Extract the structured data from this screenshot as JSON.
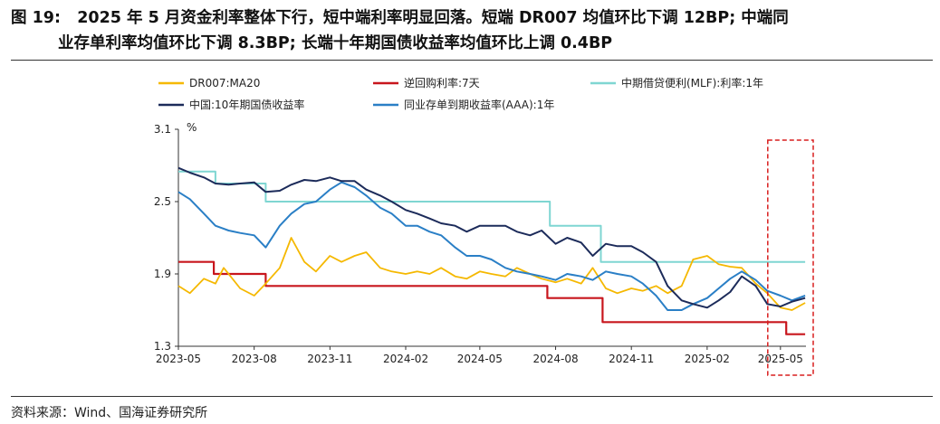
{
  "figure": {
    "label": "图 19:",
    "title_line1": "2025 年 5 月资金利率整体下行，短中端利率明显回落。短端 DR007 均值环比下调 12BP;  中端同",
    "title_line2": "业存单利率均值环比下调 8.3BP;  长端十年期国债收益率均值环比上调 0.4BP",
    "source": "资料来源：Wind、国海证券研究所"
  },
  "chart_data": {
    "type": "line",
    "title": "",
    "ylabel": "%",
    "xlabel": "",
    "ylim": [
      1.3,
      3.1
    ],
    "yticks": [
      1.3,
      1.9,
      2.5,
      3.1
    ],
    "ytick_labels": [
      "1.3",
      "1.9",
      "2.5",
      "3.1"
    ],
    "xrange": [
      "2023-05",
      "2025-06"
    ],
    "xtick_labels": [
      "2023-05",
      "2023-08",
      "2023-11",
      "2024-02",
      "2024-05",
      "2024-08",
      "2024-11",
      "2025-02",
      "2025-05"
    ],
    "grid": false,
    "legend": "top",
    "highlight": {
      "from": "2025-04-20",
      "to": "2025-06-01",
      "style": "dashed-red-box"
    },
    "colors": {
      "dr007": "#f5b800",
      "repo": "#c8161d",
      "mlf": "#7fd6d2",
      "cgb10y": "#1c2b5a",
      "ncd": "#2a7fc6"
    },
    "series": [
      {
        "key": "dr007",
        "name": "DR007:MA20",
        "points": [
          [
            "2023-05-01",
            1.8
          ],
          [
            "2023-05-15",
            1.74
          ],
          [
            "2023-06-01",
            1.86
          ],
          [
            "2023-06-15",
            1.82
          ],
          [
            "2023-06-25",
            1.95
          ],
          [
            "2023-07-01",
            1.9
          ],
          [
            "2023-07-15",
            1.78
          ],
          [
            "2023-08-01",
            1.72
          ],
          [
            "2023-08-15",
            1.82
          ],
          [
            "2023-09-01",
            1.95
          ],
          [
            "2023-09-15",
            2.2
          ],
          [
            "2023-10-01",
            2.0
          ],
          [
            "2023-10-15",
            1.92
          ],
          [
            "2023-11-01",
            2.05
          ],
          [
            "2023-11-15",
            2.0
          ],
          [
            "2023-12-01",
            2.05
          ],
          [
            "2023-12-15",
            2.08
          ],
          [
            "2024-01-01",
            1.95
          ],
          [
            "2024-01-15",
            1.92
          ],
          [
            "2024-02-01",
            1.9
          ],
          [
            "2024-02-15",
            1.92
          ],
          [
            "2024-03-01",
            1.9
          ],
          [
            "2024-03-15",
            1.95
          ],
          [
            "2024-04-01",
            1.88
          ],
          [
            "2024-04-15",
            1.86
          ],
          [
            "2024-05-01",
            1.92
          ],
          [
            "2024-05-15",
            1.9
          ],
          [
            "2024-06-01",
            1.88
          ],
          [
            "2024-06-15",
            1.95
          ],
          [
            "2024-07-01",
            1.9
          ],
          [
            "2024-07-15",
            1.86
          ],
          [
            "2024-08-01",
            1.83
          ],
          [
            "2024-08-15",
            1.86
          ],
          [
            "2024-09-01",
            1.82
          ],
          [
            "2024-09-15",
            1.95
          ],
          [
            "2024-10-01",
            1.78
          ],
          [
            "2024-10-15",
            1.74
          ],
          [
            "2024-11-01",
            1.78
          ],
          [
            "2024-11-15",
            1.76
          ],
          [
            "2024-12-01",
            1.8
          ],
          [
            "2024-12-15",
            1.74
          ],
          [
            "2025-01-01",
            1.8
          ],
          [
            "2025-01-15",
            2.02
          ],
          [
            "2025-02-01",
            2.05
          ],
          [
            "2025-02-15",
            1.98
          ],
          [
            "2025-03-01",
            1.96
          ],
          [
            "2025-03-15",
            1.95
          ],
          [
            "2025-04-01",
            1.82
          ],
          [
            "2025-04-15",
            1.74
          ],
          [
            "2025-05-01",
            1.62
          ],
          [
            "2025-05-15",
            1.6
          ],
          [
            "2025-05-31",
            1.66
          ]
        ]
      },
      {
        "key": "repo",
        "name": "逆回购利率:7天",
        "points": [
          [
            "2023-05-01",
            2.0
          ],
          [
            "2023-06-13",
            2.0
          ],
          [
            "2023-06-13",
            1.9
          ],
          [
            "2023-08-15",
            1.9
          ],
          [
            "2023-08-15",
            1.8
          ],
          [
            "2024-07-22",
            1.8
          ],
          [
            "2024-07-22",
            1.7
          ],
          [
            "2024-09-27",
            1.7
          ],
          [
            "2024-09-27",
            1.5
          ],
          [
            "2025-05-08",
            1.5
          ],
          [
            "2025-05-08",
            1.4
          ],
          [
            "2025-05-31",
            1.4
          ]
        ]
      },
      {
        "key": "mlf",
        "name": "中期借贷便利(MLF):利率:1年",
        "points": [
          [
            "2023-05-01",
            2.75
          ],
          [
            "2023-06-15",
            2.75
          ],
          [
            "2023-06-15",
            2.65
          ],
          [
            "2023-08-15",
            2.65
          ],
          [
            "2023-08-15",
            2.5
          ],
          [
            "2024-07-25",
            2.5
          ],
          [
            "2024-07-25",
            2.3
          ],
          [
            "2024-09-25",
            2.3
          ],
          [
            "2024-09-25",
            2.0
          ],
          [
            "2025-05-31",
            2.0
          ]
        ]
      },
      {
        "key": "cgb10y",
        "name": "中国:10年期国债收益率",
        "points": [
          [
            "2023-05-01",
            2.78
          ],
          [
            "2023-05-15",
            2.74
          ],
          [
            "2023-06-01",
            2.7
          ],
          [
            "2023-06-15",
            2.65
          ],
          [
            "2023-07-01",
            2.64
          ],
          [
            "2023-07-15",
            2.65
          ],
          [
            "2023-08-01",
            2.66
          ],
          [
            "2023-08-15",
            2.58
          ],
          [
            "2023-09-01",
            2.59
          ],
          [
            "2023-09-15",
            2.64
          ],
          [
            "2023-10-01",
            2.68
          ],
          [
            "2023-10-15",
            2.67
          ],
          [
            "2023-11-01",
            2.7
          ],
          [
            "2023-11-15",
            2.67
          ],
          [
            "2023-12-01",
            2.67
          ],
          [
            "2023-12-15",
            2.6
          ],
          [
            "2024-01-01",
            2.55
          ],
          [
            "2024-01-15",
            2.5
          ],
          [
            "2024-02-01",
            2.43
          ],
          [
            "2024-02-15",
            2.4
          ],
          [
            "2024-03-01",
            2.36
          ],
          [
            "2024-03-15",
            2.32
          ],
          [
            "2024-04-01",
            2.3
          ],
          [
            "2024-04-15",
            2.25
          ],
          [
            "2024-05-01",
            2.3
          ],
          [
            "2024-05-15",
            2.3
          ],
          [
            "2024-06-01",
            2.3
          ],
          [
            "2024-06-15",
            2.25
          ],
          [
            "2024-07-01",
            2.22
          ],
          [
            "2024-07-15",
            2.26
          ],
          [
            "2024-08-01",
            2.15
          ],
          [
            "2024-08-15",
            2.2
          ],
          [
            "2024-09-01",
            2.16
          ],
          [
            "2024-09-15",
            2.05
          ],
          [
            "2024-10-01",
            2.15
          ],
          [
            "2024-10-15",
            2.13
          ],
          [
            "2024-11-01",
            2.13
          ],
          [
            "2024-11-15",
            2.08
          ],
          [
            "2024-12-01",
            2.0
          ],
          [
            "2024-12-15",
            1.8
          ],
          [
            "2025-01-01",
            1.68
          ],
          [
            "2025-01-15",
            1.65
          ],
          [
            "2025-02-01",
            1.62
          ],
          [
            "2025-02-15",
            1.68
          ],
          [
            "2025-03-01",
            1.75
          ],
          [
            "2025-03-15",
            1.88
          ],
          [
            "2025-04-01",
            1.8
          ],
          [
            "2025-04-15",
            1.65
          ],
          [
            "2025-05-01",
            1.63
          ],
          [
            "2025-05-15",
            1.67
          ],
          [
            "2025-05-31",
            1.7
          ]
        ]
      },
      {
        "key": "ncd",
        "name": "同业存单到期收益率(AAA):1年",
        "points": [
          [
            "2023-05-01",
            2.58
          ],
          [
            "2023-05-15",
            2.52
          ],
          [
            "2023-06-01",
            2.4
          ],
          [
            "2023-06-15",
            2.3
          ],
          [
            "2023-07-01",
            2.26
          ],
          [
            "2023-07-15",
            2.24
          ],
          [
            "2023-08-01",
            2.22
          ],
          [
            "2023-08-15",
            2.12
          ],
          [
            "2023-09-01",
            2.3
          ],
          [
            "2023-09-15",
            2.4
          ],
          [
            "2023-10-01",
            2.48
          ],
          [
            "2023-10-15",
            2.5
          ],
          [
            "2023-11-01",
            2.6
          ],
          [
            "2023-11-15",
            2.66
          ],
          [
            "2023-12-01",
            2.62
          ],
          [
            "2023-12-15",
            2.55
          ],
          [
            "2024-01-01",
            2.45
          ],
          [
            "2024-01-15",
            2.4
          ],
          [
            "2024-02-01",
            2.3
          ],
          [
            "2024-02-15",
            2.3
          ],
          [
            "2024-03-01",
            2.25
          ],
          [
            "2024-03-15",
            2.22
          ],
          [
            "2024-04-01",
            2.12
          ],
          [
            "2024-04-15",
            2.05
          ],
          [
            "2024-05-01",
            2.05
          ],
          [
            "2024-05-15",
            2.02
          ],
          [
            "2024-06-01",
            1.95
          ],
          [
            "2024-06-15",
            1.92
          ],
          [
            "2024-07-01",
            1.9
          ],
          [
            "2024-07-15",
            1.88
          ],
          [
            "2024-08-01",
            1.85
          ],
          [
            "2024-08-15",
            1.9
          ],
          [
            "2024-09-01",
            1.88
          ],
          [
            "2024-09-15",
            1.85
          ],
          [
            "2024-10-01",
            1.92
          ],
          [
            "2024-10-15",
            1.9
          ],
          [
            "2024-11-01",
            1.88
          ],
          [
            "2024-11-15",
            1.82
          ],
          [
            "2024-12-01",
            1.72
          ],
          [
            "2024-12-15",
            1.6
          ],
          [
            "2025-01-01",
            1.6
          ],
          [
            "2025-01-15",
            1.65
          ],
          [
            "2025-02-01",
            1.7
          ],
          [
            "2025-02-15",
            1.78
          ],
          [
            "2025-03-01",
            1.86
          ],
          [
            "2025-03-15",
            1.92
          ],
          [
            "2025-04-01",
            1.85
          ],
          [
            "2025-04-15",
            1.76
          ],
          [
            "2025-05-01",
            1.72
          ],
          [
            "2025-05-15",
            1.68
          ],
          [
            "2025-05-31",
            1.72
          ]
        ]
      }
    ]
  }
}
